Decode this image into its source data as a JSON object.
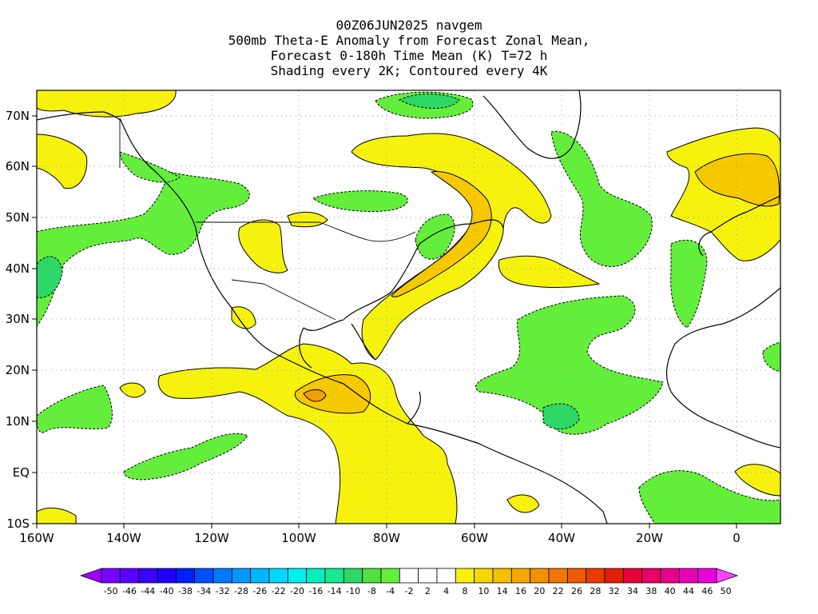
{
  "title": {
    "line1": "00Z06JUN2025 navgem",
    "line2": "500mb Theta-E Anomaly from Forecast Zonal Mean,",
    "line3": "Forecast 0-180h Time Mean (K) T=72 h",
    "line4": "Shading every 2K; Contoured every 4K"
  },
  "map": {
    "lon_range": [
      -160,
      10
    ],
    "lat_range": [
      -10,
      75
    ],
    "x_ticks": [
      "160W",
      "140W",
      "120W",
      "100W",
      "80W",
      "60W",
      "40W",
      "20W",
      "0"
    ],
    "y_ticks": [
      "10S",
      "EQ",
      "10N",
      "20N",
      "30N",
      "40N",
      "50N",
      "60N",
      "70N"
    ],
    "colors": {
      "green_light": "#64ee3c",
      "green_mid": "#2ed866",
      "yellow": "#f6f20e",
      "gold": "#f5c800",
      "orange": "#f0a000"
    }
  },
  "colorbar": {
    "labels": [
      "-50",
      "-46",
      "-44",
      "-40",
      "-38",
      "-34",
      "-32",
      "-28",
      "-26",
      "-22",
      "-20",
      "-16",
      "-14",
      "-10",
      "-8",
      "-4",
      "-2",
      "2",
      "4",
      "8",
      "10",
      "14",
      "16",
      "20",
      "22",
      "26",
      "28",
      "32",
      "34",
      "38",
      "40",
      "44",
      "46",
      "50"
    ],
    "colors": [
      "#a000ff",
      "#7a00ff",
      "#5a00ff",
      "#3c00ff",
      "#1e00ff",
      "#0020ff",
      "#0050ff",
      "#0078ff",
      "#0098ff",
      "#00b8ff",
      "#00d8ff",
      "#00f0f0",
      "#00f0c0",
      "#18e890",
      "#2ed866",
      "#50e040",
      "#64ee3c",
      "#ffffff",
      "#ffffff",
      "#ffffff",
      "#f6f20e",
      "#f5d800",
      "#f5c000",
      "#f5a800",
      "#f29000",
      "#f07800",
      "#ee5a00",
      "#e83c00",
      "#e81e00",
      "#e8003c",
      "#e80064",
      "#e8008c",
      "#e800b4",
      "#e800dc",
      "#ff40ff"
    ]
  }
}
